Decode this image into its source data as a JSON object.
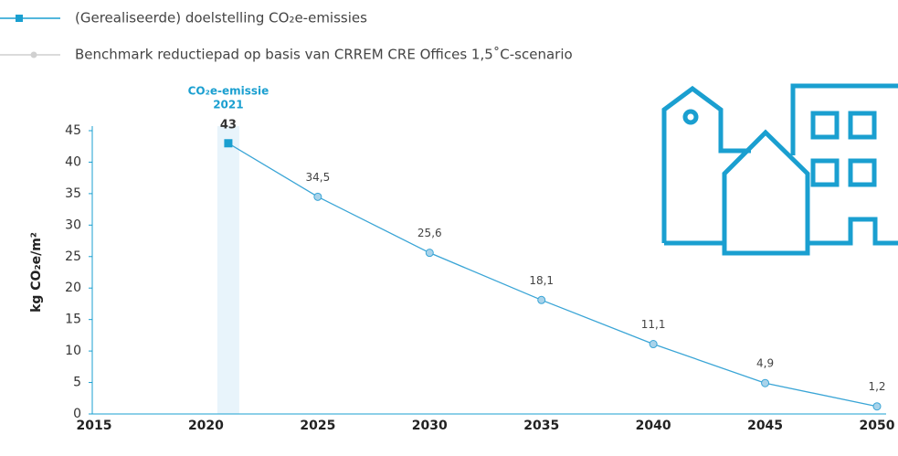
{
  "chart_data": {
    "type": "line",
    "ylabel": "kg CO₂e/m²",
    "annotation": {
      "lines": [
        "CO₂e-emissie",
        "2021"
      ],
      "x": 2021
    },
    "xlim": [
      2015,
      2050
    ],
    "xticks": [
      2015,
      2020,
      2025,
      2030,
      2035,
      2040,
      2045,
      2050
    ],
    "ylim": [
      0,
      45
    ],
    "yticks": [
      0,
      5,
      10,
      15,
      20,
      25,
      30,
      35,
      40,
      45
    ],
    "series": [
      {
        "name": "(Gerealiseerde) doelstelling CO₂e-emissies",
        "color": "#1a9fd0",
        "marker": "square",
        "x": [
          2021
        ],
        "values": [
          43
        ]
      },
      {
        "name": "Benchmark reductiepad op basis van CRREM CRE Offices 1,5˚C-scenario",
        "color": "#3aa5d6",
        "marker": "circle",
        "x": [
          2021,
          2025,
          2030,
          2035,
          2040,
          2045,
          2050
        ],
        "values": [
          43,
          34.5,
          25.6,
          18.1,
          11.1,
          4.9,
          1.2
        ],
        "value_labels": [
          null,
          "34,5",
          "25,6",
          "18,1",
          "11,1",
          "4,9",
          "1,2"
        ]
      }
    ]
  }
}
